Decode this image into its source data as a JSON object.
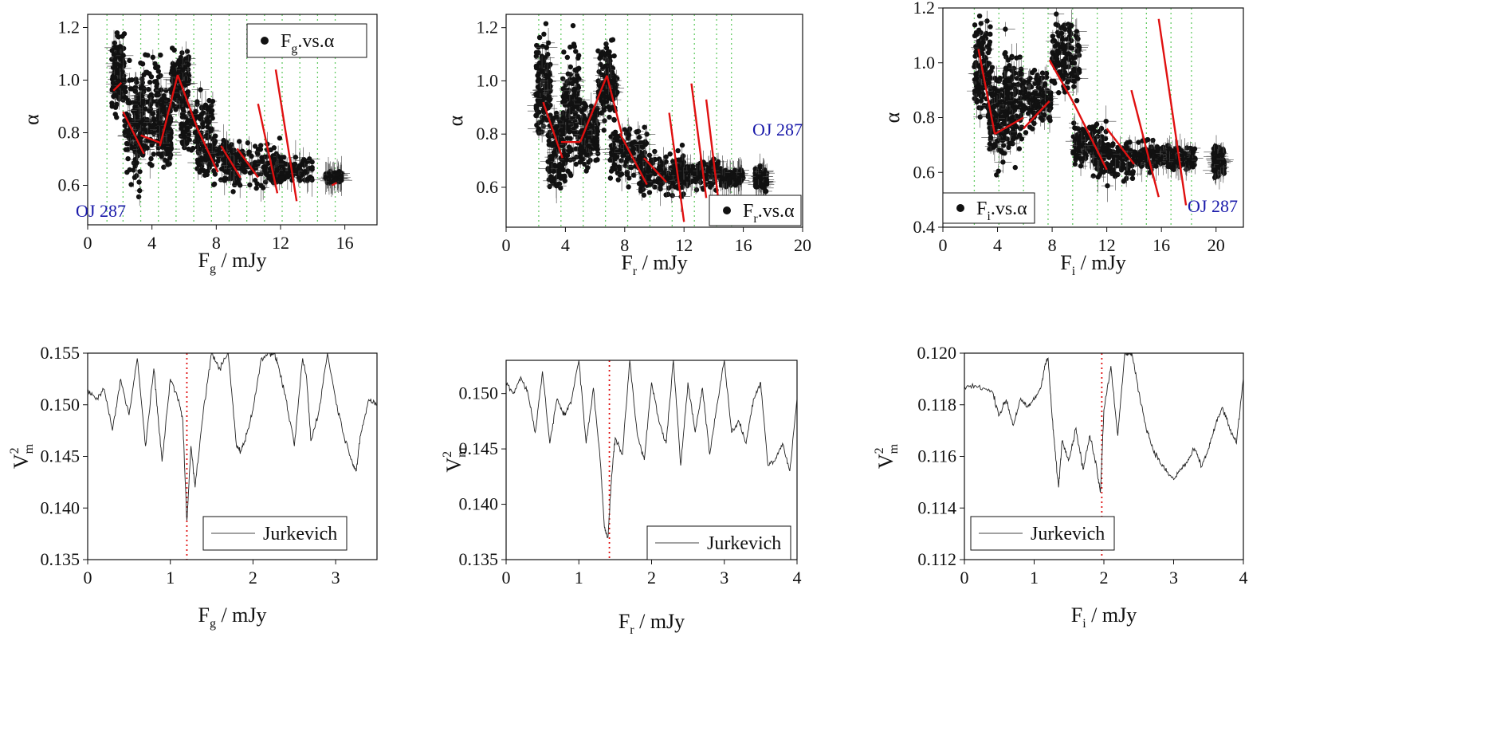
{
  "colors": {
    "points": "#111111",
    "fit_lines": "#e01010",
    "grid_lines": "#66cc66",
    "dotted_marker": "#e01010",
    "label_text": "#1a1aaa"
  },
  "chart_data": [
    {
      "type": "scatter",
      "panel": "top-left",
      "xlabel": {
        "main": "F",
        "sub": "g",
        "rest": " / mJy"
      },
      "ylabel": "α",
      "xlim": [
        0,
        18
      ],
      "ylim": [
        0.45,
        1.25
      ],
      "xticks": [
        "0",
        "4",
        "8",
        "12",
        "16"
      ],
      "xtick_values": [
        0,
        4,
        8,
        12,
        16
      ],
      "yticks": [
        "0.6",
        "0.8",
        "1.0",
        "1.2"
      ],
      "ytick_values": [
        0.6,
        0.8,
        1.0,
        1.2
      ],
      "legend": {
        "main": "F",
        "sub": "g",
        "rest": ".vs.α",
        "location": "top-right"
      },
      "object_label": {
        "text": "OJ 287",
        "location": "bottom-left"
      },
      "bin_edges": [
        1.2,
        2.2,
        3.3,
        4.4,
        5.5,
        6.6,
        7.7,
        8.8,
        9.9,
        11.0,
        12.1,
        13.2,
        14.3,
        15.4
      ],
      "clusters": [
        {
          "x": [
            1.5,
            2.3
          ],
          "y": [
            0.85,
            1.2
          ]
        },
        {
          "x": [
            2.3,
            3.5
          ],
          "y": [
            0.6,
            1.05
          ]
        },
        {
          "x": [
            3.2,
            4.6
          ],
          "y": [
            0.6,
            1.15
          ]
        },
        {
          "x": [
            4.4,
            5.2
          ],
          "y": [
            0.62,
            1.0
          ]
        },
        {
          "x": [
            5.2,
            6.3
          ],
          "y": [
            0.85,
            1.15
          ]
        },
        {
          "x": [
            5.8,
            7.8
          ],
          "y": [
            0.7,
            0.95
          ]
        },
        {
          "x": [
            6.8,
            9.2
          ],
          "y": [
            0.6,
            0.8
          ]
        },
        {
          "x": [
            8.5,
            12.0
          ],
          "y": [
            0.58,
            0.78
          ]
        },
        {
          "x": [
            11.0,
            14.0
          ],
          "y": [
            0.6,
            0.72
          ]
        },
        {
          "x": [
            14.8,
            15.8
          ],
          "y": [
            0.6,
            0.66
          ]
        }
      ],
      "fit_segments": [
        [
          [
            1.6,
            0.96
          ],
          [
            2.1,
            0.99
          ]
        ],
        [
          [
            2.2,
            0.88
          ],
          [
            3.5,
            0.72
          ]
        ],
        [
          [
            3.3,
            0.79
          ],
          [
            4.6,
            0.76
          ]
        ],
        [
          [
            4.5,
            0.75
          ],
          [
            5.6,
            1.02
          ]
        ],
        [
          [
            5.6,
            1.02
          ],
          [
            6.8,
            0.82
          ]
        ],
        [
          [
            6.8,
            0.82
          ],
          [
            8.1,
            0.65
          ]
        ],
        [
          [
            8.3,
            0.75
          ],
          [
            9.5,
            0.63
          ]
        ],
        [
          [
            9.3,
            0.74
          ],
          [
            10.6,
            0.63
          ]
        ],
        [
          [
            10.6,
            0.91
          ],
          [
            11.8,
            0.57
          ]
        ],
        [
          [
            11.7,
            1.04
          ],
          [
            13.0,
            0.54
          ]
        ],
        [
          [
            15.2,
            0.6
          ],
          [
            15.5,
            0.61
          ]
        ]
      ]
    },
    {
      "type": "scatter",
      "panel": "top-middle",
      "xlabel": {
        "main": "F",
        "sub": "r",
        "rest": " / mJy"
      },
      "ylabel": "α",
      "xlim": [
        0,
        20
      ],
      "ylim": [
        0.45,
        1.25
      ],
      "xticks": [
        "0",
        "4",
        "8",
        "12",
        "16",
        "20"
      ],
      "xtick_values": [
        0,
        4,
        8,
        12,
        16,
        20
      ],
      "yticks": [
        "0.6",
        "0.8",
        "1.0",
        "1.2"
      ],
      "ytick_values": [
        0.6,
        0.8,
        1.0,
        1.2
      ],
      "legend": {
        "main": "F",
        "sub": "r",
        "rest": ".vs.α",
        "location": "bottom-right"
      },
      "object_label": {
        "text": "OJ 287",
        "location": "right"
      },
      "bin_edges": [
        2.2,
        3.7,
        5.2,
        6.7,
        8.2,
        9.7,
        11.2,
        12.7,
        14.2,
        15.2
      ],
      "clusters": [
        {
          "x": [
            2.0,
            3.0
          ],
          "y": [
            0.75,
            1.2
          ]
        },
        {
          "x": [
            2.8,
            4.0
          ],
          "y": [
            0.55,
            0.95
          ]
        },
        {
          "x": [
            3.8,
            5.0
          ],
          "y": [
            0.6,
            1.2
          ]
        },
        {
          "x": [
            5.0,
            6.2
          ],
          "y": [
            0.65,
            0.95
          ]
        },
        {
          "x": [
            6.2,
            7.5
          ],
          "y": [
            0.8,
            1.2
          ]
        },
        {
          "x": [
            7.0,
            9.5
          ],
          "y": [
            0.6,
            0.85
          ]
        },
        {
          "x": [
            9.0,
            12.0
          ],
          "y": [
            0.55,
            0.75
          ]
        },
        {
          "x": [
            11.5,
            14.5
          ],
          "y": [
            0.58,
            0.72
          ]
        },
        {
          "x": [
            14.5,
            16.0
          ],
          "y": [
            0.6,
            0.68
          ]
        },
        {
          "x": [
            16.8,
            17.6
          ],
          "y": [
            0.58,
            0.68
          ]
        }
      ],
      "fit_segments": [
        [
          [
            2.5,
            0.92
          ],
          [
            3.8,
            0.71
          ]
        ],
        [
          [
            3.7,
            0.77
          ],
          [
            5.0,
            0.77
          ]
        ],
        [
          [
            5.0,
            0.77
          ],
          [
            6.8,
            1.02
          ]
        ],
        [
          [
            6.8,
            1.02
          ],
          [
            7.8,
            0.8
          ]
        ],
        [
          [
            7.7,
            0.8
          ],
          [
            9.5,
            0.61
          ]
        ],
        [
          [
            9.3,
            0.71
          ],
          [
            10.8,
            0.62
          ]
        ],
        [
          [
            11.0,
            0.88
          ],
          [
            12.0,
            0.47
          ]
        ],
        [
          [
            12.5,
            0.99
          ],
          [
            13.5,
            0.56
          ]
        ],
        [
          [
            13.5,
            0.93
          ],
          [
            14.3,
            0.56
          ]
        ]
      ]
    },
    {
      "type": "scatter",
      "panel": "top-right",
      "xlabel": {
        "main": "F",
        "sub": "i",
        "rest": " / mJy"
      },
      "ylabel": "α",
      "xlim": [
        0,
        22
      ],
      "ylim": [
        0.4,
        1.2
      ],
      "xticks": [
        "0",
        "4",
        "8",
        "12",
        "16",
        "20"
      ],
      "xtick_values": [
        0,
        4,
        8,
        12,
        16,
        20
      ],
      "yticks": [
        "0.4",
        "0.6",
        "0.8",
        "1.0",
        "1.2"
      ],
      "ytick_values": [
        0.4,
        0.6,
        0.8,
        1.0,
        1.2
      ],
      "legend": {
        "main": "F",
        "sub": "i",
        "rest": ".vs.α",
        "location": "bottom-left"
      },
      "object_label": {
        "text": "OJ 287",
        "location": "bottom-right"
      },
      "bin_edges": [
        2.3,
        4.1,
        5.9,
        7.7,
        9.5,
        11.3,
        13.1,
        14.9,
        16.7,
        18.2
      ],
      "clusters": [
        {
          "x": [
            2.3,
            3.5
          ],
          "y": [
            0.75,
            1.2
          ]
        },
        {
          "x": [
            3.3,
            4.6
          ],
          "y": [
            0.6,
            1.0
          ]
        },
        {
          "x": [
            4.5,
            5.8
          ],
          "y": [
            0.65,
            1.1
          ]
        },
        {
          "x": [
            5.8,
            8.0
          ],
          "y": [
            0.72,
            1.0
          ]
        },
        {
          "x": [
            8.0,
            10.0
          ],
          "y": [
            0.85,
            1.2
          ]
        },
        {
          "x": [
            9.5,
            12.0
          ],
          "y": [
            0.6,
            0.8
          ]
        },
        {
          "x": [
            11.0,
            14.0
          ],
          "y": [
            0.55,
            0.75
          ]
        },
        {
          "x": [
            14.0,
            16.5
          ],
          "y": [
            0.6,
            0.72
          ]
        },
        {
          "x": [
            16.5,
            18.5
          ],
          "y": [
            0.6,
            0.7
          ]
        },
        {
          "x": [
            19.8,
            20.6
          ],
          "y": [
            0.58,
            0.7
          ]
        }
      ],
      "fit_segments": [
        [
          [
            2.6,
            1.05
          ],
          [
            3.8,
            0.74
          ]
        ],
        [
          [
            3.8,
            0.74
          ],
          [
            5.9,
            0.8
          ]
        ],
        [
          [
            5.9,
            0.76
          ],
          [
            7.8,
            0.86
          ]
        ],
        [
          [
            7.8,
            1.01
          ],
          [
            9.5,
            0.86
          ]
        ],
        [
          [
            9.5,
            0.86
          ],
          [
            12.0,
            0.61
          ]
        ],
        [
          [
            12.0,
            0.76
          ],
          [
            14.0,
            0.63
          ]
        ],
        [
          [
            13.8,
            0.9
          ],
          [
            15.8,
            0.51
          ]
        ],
        [
          [
            15.8,
            1.16
          ],
          [
            17.8,
            0.48
          ]
        ]
      ]
    },
    {
      "type": "line",
      "panel": "bottom-left",
      "xlabel": {
        "main": "F",
        "sub": "g",
        "rest": " / mJy"
      },
      "ylabel": {
        "main": "V",
        "sup": "2",
        "sub": "m"
      },
      "xlim": [
        0,
        3.5
      ],
      "ylim": [
        0.135,
        0.155
      ],
      "xticks": [
        "0",
        "1",
        "2",
        "3"
      ],
      "xtick_values": [
        0,
        1,
        2,
        3
      ],
      "yticks": [
        "0.135",
        "0.140",
        "0.145",
        "0.150",
        "0.155"
      ],
      "ytick_values": [
        0.135,
        0.14,
        0.145,
        0.15,
        0.155
      ],
      "legend": {
        "text": "Jurkevich",
        "location": "bottom-right"
      },
      "marker_x": 1.2,
      "series": {
        "name": "Jurkevich",
        "x": [
          0,
          0.1,
          0.2,
          0.3,
          0.4,
          0.5,
          0.6,
          0.7,
          0.8,
          0.85,
          0.9,
          1.0,
          1.1,
          1.15,
          1.2,
          1.25,
          1.3,
          1.4,
          1.5,
          1.6,
          1.7,
          1.8,
          1.85,
          1.9,
          2.0,
          2.1,
          2.2,
          2.25,
          2.3,
          2.4,
          2.5,
          2.6,
          2.65,
          2.7,
          2.8,
          2.9,
          3.0,
          3.1,
          3.2,
          3.25,
          3.3,
          3.4,
          3.5
        ],
        "y": [
          0.1515,
          0.1505,
          0.1515,
          0.1475,
          0.1525,
          0.149,
          0.1545,
          0.146,
          0.1535,
          0.149,
          0.1445,
          0.1525,
          0.1505,
          0.1485,
          0.1388,
          0.146,
          0.142,
          0.1495,
          0.155,
          0.1535,
          0.155,
          0.146,
          0.1455,
          0.1465,
          0.1495,
          0.1545,
          0.155,
          0.155,
          0.154,
          0.1505,
          0.146,
          0.1545,
          0.1525,
          0.1465,
          0.1495,
          0.155,
          0.1505,
          0.147,
          0.1445,
          0.1436,
          0.147,
          0.1505,
          0.15
        ]
      }
    },
    {
      "type": "line",
      "panel": "bottom-middle",
      "xlabel": {
        "main": "F",
        "sub": "r",
        "rest": " / mJy"
      },
      "ylabel": {
        "main": "V",
        "sup": "2",
        "sub": "m"
      },
      "xlim": [
        0,
        4
      ],
      "ylim": [
        0.135,
        0.153
      ],
      "xticks": [
        "0",
        "1",
        "2",
        "3",
        "4"
      ],
      "xtick_values": [
        0,
        1,
        2,
        3,
        4
      ],
      "yticks": [
        "0.135",
        "0.140",
        "0.145",
        "0.150"
      ],
      "ytick_values": [
        0.135,
        0.14,
        0.145,
        0.15
      ],
      "legend": {
        "text": "Jurkevich",
        "location": "bottom-right"
      },
      "marker_x": 1.42,
      "series": {
        "name": "Jurkevich",
        "x": [
          0,
          0.1,
          0.2,
          0.3,
          0.4,
          0.5,
          0.6,
          0.7,
          0.8,
          0.9,
          1.0,
          1.1,
          1.2,
          1.3,
          1.35,
          1.4,
          1.45,
          1.5,
          1.6,
          1.7,
          1.8,
          1.9,
          2.0,
          2.1,
          2.2,
          2.3,
          2.4,
          2.5,
          2.6,
          2.7,
          2.8,
          2.9,
          3.0,
          3.1,
          3.2,
          3.3,
          3.4,
          3.5,
          3.6,
          3.7,
          3.8,
          3.9,
          4.0
        ],
        "y": [
          0.151,
          0.15,
          0.1515,
          0.15,
          0.1465,
          0.152,
          0.1455,
          0.1495,
          0.148,
          0.1495,
          0.153,
          0.1455,
          0.1505,
          0.1435,
          0.138,
          0.137,
          0.1425,
          0.146,
          0.1445,
          0.153,
          0.1465,
          0.144,
          0.151,
          0.1475,
          0.1455,
          0.153,
          0.1435,
          0.151,
          0.1465,
          0.1505,
          0.1445,
          0.149,
          0.153,
          0.1465,
          0.1475,
          0.1455,
          0.1495,
          0.151,
          0.1435,
          0.144,
          0.1455,
          0.143,
          0.1495
        ]
      }
    },
    {
      "type": "line",
      "panel": "bottom-right",
      "xlabel": {
        "main": "F",
        "sub": "i",
        "rest": " / mJy"
      },
      "ylabel": {
        "main": "V",
        "sup": "2",
        "sub": "m"
      },
      "xlim": [
        0,
        4
      ],
      "ylim": [
        0.112,
        0.12
      ],
      "xticks": [
        "0",
        "1",
        "2",
        "3",
        "4"
      ],
      "xtick_values": [
        0,
        1,
        2,
        3,
        4
      ],
      "yticks": [
        "0.112",
        "0.114",
        "0.116",
        "0.118",
        "0.120"
      ],
      "ytick_values": [
        0.112,
        0.114,
        0.116,
        0.118,
        0.12
      ],
      "legend": {
        "text": "Jurkevich",
        "location": "bottom-left"
      },
      "marker_x": 1.97,
      "series": {
        "name": "Jurkevich",
        "x": [
          0,
          0.2,
          0.4,
          0.5,
          0.6,
          0.7,
          0.8,
          0.9,
          1.0,
          1.1,
          1.15,
          1.2,
          1.25,
          1.3,
          1.35,
          1.4,
          1.5,
          1.6,
          1.7,
          1.8,
          1.9,
          1.95,
          2.0,
          2.1,
          2.2,
          2.3,
          2.35,
          2.4,
          2.5,
          2.6,
          2.7,
          2.8,
          2.9,
          3.0,
          3.1,
          3.2,
          3.3,
          3.4,
          3.5,
          3.6,
          3.7,
          3.8,
          3.9,
          4.0
        ],
        "y": [
          0.1187,
          0.1187,
          0.1185,
          0.1176,
          0.1182,
          0.1172,
          0.1182,
          0.1179,
          0.1182,
          0.1187,
          0.1195,
          0.1198,
          0.1178,
          0.1162,
          0.1148,
          0.1166,
          0.1159,
          0.1171,
          0.1155,
          0.1168,
          0.1155,
          0.1146,
          0.1178,
          0.1195,
          0.1168,
          0.12,
          0.12,
          0.12,
          0.1185,
          0.1172,
          0.1163,
          0.1158,
          0.1154,
          0.1151,
          0.1155,
          0.1158,
          0.1163,
          0.1156,
          0.1163,
          0.1172,
          0.1179,
          0.1171,
          0.1165,
          0.119
        ]
      }
    }
  ]
}
